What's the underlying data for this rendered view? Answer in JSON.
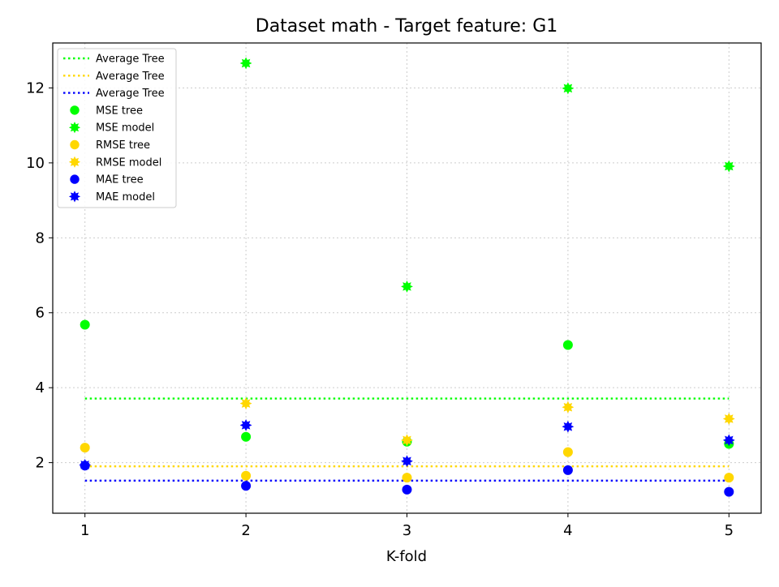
{
  "chart_data": {
    "type": "scatter",
    "title": "Dataset math - Target feature: G1",
    "xlabel": "K-fold",
    "ylabel": "",
    "xlim": [
      0.8,
      5.2
    ],
    "ylim": [
      0.65,
      13.2
    ],
    "x_ticks": [
      1,
      2,
      3,
      4,
      5
    ],
    "y_ticks": [
      2,
      4,
      6,
      8,
      10,
      12
    ],
    "grid": true,
    "legend_position": "top-left",
    "colors": {
      "mse": "#00ff00",
      "rmse": "#ffd700",
      "mae": "#0000ff"
    },
    "average_lines": [
      {
        "name": "Average Tree",
        "color": "#00ff00",
        "y": 3.71,
        "x_range": [
          1,
          5
        ]
      },
      {
        "name": "Average Tree",
        "color": "#ffd700",
        "y": 1.9,
        "x_range": [
          1,
          5
        ]
      },
      {
        "name": "Average Tree",
        "color": "#0000ff",
        "y": 1.52,
        "x_range": [
          1,
          5
        ]
      }
    ],
    "series": [
      {
        "name": "MSE tree",
        "color": "#00ff00",
        "marker": "circle",
        "x": [
          1,
          2,
          3,
          4,
          5
        ],
        "y": [
          5.68,
          2.69,
          2.56,
          5.14,
          2.5
        ]
      },
      {
        "name": "MSE model",
        "color": "#00ff00",
        "marker": "star",
        "x": [
          2,
          3,
          4,
          5
        ],
        "y": [
          12.66,
          6.7,
          11.99,
          9.91
        ]
      },
      {
        "name": "RMSE tree",
        "color": "#ffd700",
        "marker": "circle",
        "x": [
          1,
          2,
          3,
          4,
          5
        ],
        "y": [
          2.4,
          1.65,
          1.6,
          2.28,
          1.6
        ]
      },
      {
        "name": "RMSE model",
        "color": "#ffd700",
        "marker": "star",
        "x": [
          2,
          3,
          4,
          5
        ],
        "y": [
          3.58,
          2.6,
          3.48,
          3.17
        ]
      },
      {
        "name": "MAE tree",
        "color": "#0000ff",
        "marker": "circle",
        "x": [
          1,
          2,
          3,
          4,
          5
        ],
        "y": [
          1.92,
          1.38,
          1.28,
          1.8,
          1.22
        ]
      },
      {
        "name": "MAE model",
        "color": "#0000ff",
        "marker": "star",
        "x": [
          1,
          2,
          3,
          4,
          5
        ],
        "y": [
          1.94,
          3.0,
          2.04,
          2.96,
          2.6
        ]
      }
    ]
  }
}
